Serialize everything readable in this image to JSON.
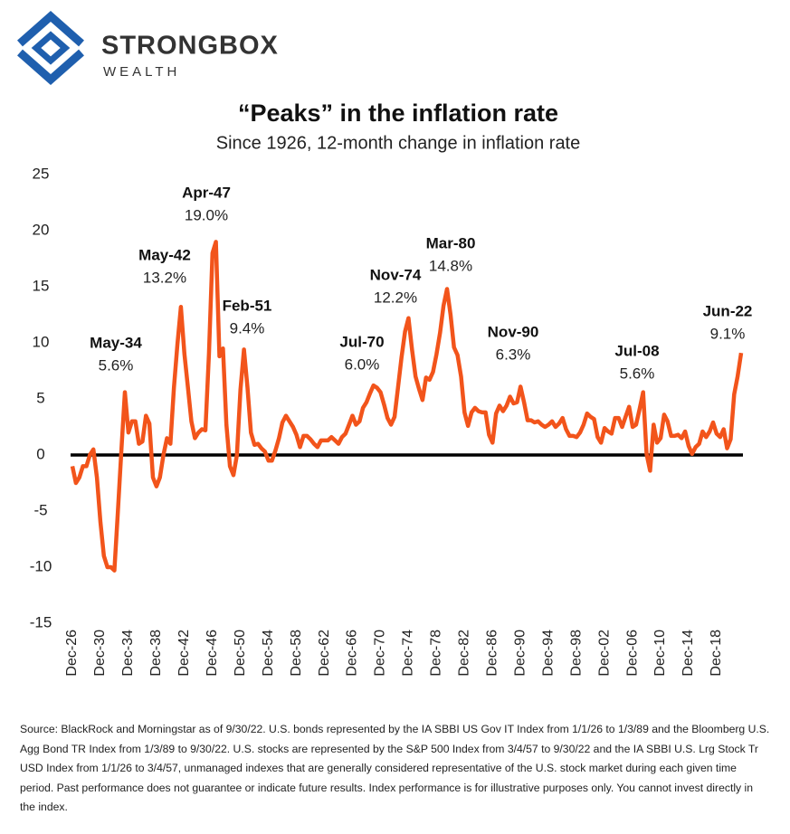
{
  "logo": {
    "name": "STRONGBOX",
    "sub": "WEALTH"
  },
  "chart_data": {
    "type": "line",
    "title": "“Peaks” in the inflation rate",
    "subtitle": "Since 1926, 12-month change in inflation rate",
    "categories": [
      "Dec-26",
      null,
      null,
      null,
      null,
      null,
      null,
      null,
      "Dec-30",
      null,
      null,
      null,
      null,
      null,
      null,
      null,
      "Dec-34",
      null,
      null,
      null,
      null,
      null,
      null,
      null,
      "Dec-38",
      null,
      null,
      null,
      null,
      null,
      null,
      null,
      "Dec-42",
      null,
      null,
      null,
      null,
      null,
      null,
      null,
      "Dec-46",
      null,
      null,
      null,
      null,
      null,
      null,
      null,
      "Dec-50",
      null,
      null,
      null,
      null,
      null,
      null,
      null,
      "Dec-54",
      null,
      null,
      null,
      null,
      null,
      null,
      null,
      "Dec-58",
      null,
      null,
      null,
      null,
      null,
      null,
      null,
      "Dec-62",
      null,
      null,
      null,
      null,
      null,
      null,
      null,
      "Dec-66",
      null,
      null,
      null,
      null,
      null,
      null,
      null,
      "Dec-70",
      null,
      null,
      null,
      null,
      null,
      null,
      null,
      "Dec-74",
      null,
      null,
      null,
      null,
      null,
      null,
      null,
      "Dec-78",
      null,
      null,
      null,
      null,
      null,
      null,
      null,
      "Dec-82",
      null,
      null,
      null,
      null,
      null,
      null,
      null,
      "Dec-86",
      null,
      null,
      null,
      null,
      null,
      null,
      null,
      "Dec-90",
      null,
      null,
      null,
      null,
      null,
      null,
      null,
      "Dec-94",
      null,
      null,
      null,
      null,
      null,
      null,
      null,
      "Dec-98",
      null,
      null,
      null,
      null,
      null,
      null,
      null,
      "Dec-02",
      null,
      null,
      null,
      null,
      null,
      null,
      null,
      "Dec-06",
      null,
      null,
      null,
      null,
      null,
      null,
      null,
      "Dec-10",
      null,
      null,
      null,
      null,
      null,
      null,
      null,
      "Dec-14",
      null,
      null,
      null,
      null,
      null,
      null,
      null,
      "Dec-18",
      null,
      null,
      null,
      null,
      null,
      null,
      null
    ],
    "series": [
      {
        "name": "Inflation rate",
        "color": "#f2541b",
        "values": [
          -1,
          -2.5,
          -2,
          -1,
          -1,
          0,
          0.5,
          -2,
          -6,
          -9,
          -10,
          -10,
          -10.3,
          -5,
          0.5,
          5.6,
          2,
          3,
          3,
          1,
          1.2,
          3.5,
          2.8,
          -2,
          -2.8,
          -2,
          0,
          1.5,
          1,
          6,
          9.9,
          13.2,
          9,
          6,
          3,
          1.5,
          2,
          2.3,
          2.2,
          9,
          18,
          19.0,
          8.8,
          9.5,
          2.7,
          -1,
          -1.8,
          0,
          5.8,
          9.4,
          6,
          2,
          0.9,
          1,
          0.6,
          0.3,
          -0.5,
          -0.5,
          0.4,
          1.5,
          2.9,
          3.5,
          3,
          2.5,
          1.8,
          0.7,
          1.7,
          1.7,
          1.4,
          1,
          0.7,
          1.3,
          1.3,
          1.3,
          1.6,
          1.3,
          1,
          1.6,
          1.9,
          2.7,
          3.5,
          2.7,
          3,
          4.2,
          4.7,
          5.5,
          6.2,
          6.0,
          5.6,
          4.5,
          3.3,
          2.7,
          3.4,
          6,
          8.7,
          11,
          12.2,
          9.4,
          7,
          5.9,
          4.9,
          6.9,
          6.7,
          7.4,
          9,
          10.9,
          13.3,
          14.8,
          12.5,
          9.6,
          8.9,
          7,
          3.8,
          2.6,
          3.8,
          4.2,
          3.9,
          3.8,
          3.8,
          1.8,
          1.1,
          3.7,
          4.4,
          3.9,
          4.4,
          5.2,
          4.6,
          4.7,
          6.1,
          4.7,
          3.1,
          3.1,
          2.9,
          3,
          2.7,
          2.5,
          2.7,
          3,
          2.5,
          2.8,
          3.3,
          2.3,
          1.7,
          1.7,
          1.6,
          2,
          2.7,
          3.7,
          3.4,
          3.2,
          1.6,
          1.1,
          2.4,
          2.1,
          1.9,
          3.3,
          3.3,
          2.5,
          3.4,
          4.3,
          2.5,
          2.7,
          4.1,
          5.6,
          0.1,
          -1.4,
          2.7,
          1.1,
          1.5,
          3.6,
          3,
          1.7,
          1.7,
          1.8,
          1.5,
          2.1,
          0.8,
          0.1,
          0.7,
          1,
          2.1,
          1.6,
          2.1,
          2.9,
          1.9,
          1.6,
          2.3,
          0.6,
          1.4,
          5.4,
          7,
          9.1
        ]
      }
    ],
    "ylim": [
      -15,
      25
    ],
    "yticks": [
      25,
      20,
      15,
      10,
      5,
      0,
      -5,
      -10,
      -15
    ],
    "annotations": [
      {
        "label": "May-34",
        "value": 5.6,
        "value_label": "5.6%"
      },
      {
        "label": "May-42",
        "value": 13.2,
        "value_label": "13.2%"
      },
      {
        "label": "Apr-47",
        "value": 19.0,
        "value_label": "19.0%"
      },
      {
        "label": "Feb-51",
        "value": 9.4,
        "value_label": "9.4%"
      },
      {
        "label": "Jul-70",
        "value": 6.0,
        "value_label": "6.0%"
      },
      {
        "label": "Nov-74",
        "value": 12.2,
        "value_label": "12.2%"
      },
      {
        "label": "Mar-80",
        "value": 14.8,
        "value_label": "14.8%"
      },
      {
        "label": "Nov-90",
        "value": 6.3,
        "value_label": "6.3%"
      },
      {
        "label": "Jul-08",
        "value": 5.6,
        "value_label": "5.6%"
      },
      {
        "label": "Jun-22",
        "value": 9.1,
        "value_label": "9.1%"
      }
    ],
    "source": "Source: BlackRock and  Morningstar as of 9/30/22. U.S. bonds represented by the IA SBBI US Gov IT Index from 1/1/26 to 1/3/89 and the Bloomberg U.S. Agg Bond TR Index from 1/3/89 to 9/30/22. U.S. stocks are represented by the S&P 500 Index from 3/4/57 to 9/30/22 and the IA SBBI U.S. Lrg Stock Tr USD Index from 1/1/26 to 3/4/57, unmanaged indexes that are generally considered representative of the U.S. stock market during each given time period. Past performance does not guarantee or indicate future results. Index performance is for illustrative purposes only. You cannot invest directly in the index."
  }
}
